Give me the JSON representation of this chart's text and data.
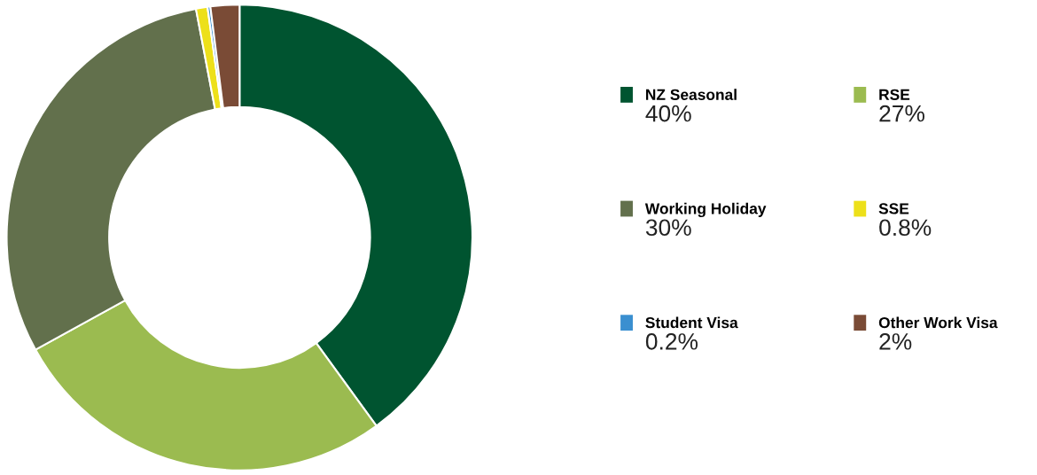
{
  "chart_data": {
    "type": "donut",
    "categories": [
      "NZ Seasonal",
      "RSE",
      "Working Holiday",
      "SSE",
      "Student Visa",
      "Other Work Visa"
    ],
    "values": [
      40,
      27,
      30,
      0.8,
      0.2,
      2
    ],
    "value_labels": [
      "40%",
      "27%",
      "30%",
      "0.8%",
      "0.2%",
      "2%"
    ],
    "colors": [
      "#005430",
      "#9bbb50",
      "#62704c",
      "#ede01a",
      "#3a8fd0",
      "#7a4b36"
    ],
    "legend": "right"
  }
}
